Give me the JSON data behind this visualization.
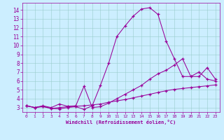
{
  "xlabel": "Windchill (Refroidissement éolien,°C)",
  "bg_color": "#cceeff",
  "line_color": "#990099",
  "grid_color": "#99cccc",
  "xlim": [
    -0.5,
    23.5
  ],
  "ylim": [
    2.5,
    14.8
  ],
  "xticks": [
    0,
    1,
    2,
    3,
    4,
    5,
    6,
    7,
    8,
    9,
    10,
    11,
    12,
    13,
    14,
    15,
    16,
    17,
    18,
    19,
    20,
    21,
    22,
    23
  ],
  "yticks": [
    3,
    4,
    5,
    6,
    7,
    8,
    9,
    10,
    11,
    12,
    13,
    14
  ],
  "line1_x": [
    0,
    1,
    2,
    3,
    4,
    5,
    6,
    7,
    8,
    9,
    10,
    11,
    12,
    13,
    14,
    15,
    16,
    17,
    18,
    19,
    20,
    21,
    22,
    23
  ],
  "line1_y": [
    3.2,
    3.0,
    3.1,
    2.9,
    2.85,
    3.0,
    3.1,
    2.8,
    3.2,
    5.5,
    8.0,
    11.0,
    12.2,
    13.3,
    14.1,
    14.25,
    13.5,
    10.5,
    8.5,
    6.5,
    6.5,
    7.0,
    6.2,
    6.0
  ],
  "line2_x": [
    0,
    1,
    2,
    3,
    4,
    5,
    6,
    7,
    8,
    9,
    10,
    11,
    12,
    13,
    14,
    15,
    16,
    17,
    18,
    19,
    20,
    21,
    22,
    23
  ],
  "line2_y": [
    3.2,
    3.0,
    3.2,
    3.0,
    3.4,
    3.15,
    3.2,
    5.4,
    3.0,
    3.1,
    3.5,
    4.0,
    4.5,
    5.0,
    5.5,
    6.2,
    6.8,
    7.2,
    7.8,
    8.5,
    6.5,
    6.5,
    7.5,
    6.2
  ],
  "line3_x": [
    0,
    1,
    2,
    3,
    4,
    5,
    6,
    7,
    8,
    9,
    10,
    11,
    12,
    13,
    14,
    15,
    16,
    17,
    18,
    19,
    20,
    21,
    22,
    23
  ],
  "line3_y": [
    3.2,
    3.0,
    3.15,
    2.9,
    3.0,
    3.1,
    3.15,
    3.2,
    3.3,
    3.4,
    3.6,
    3.75,
    3.9,
    4.1,
    4.3,
    4.5,
    4.7,
    4.9,
    5.05,
    5.15,
    5.25,
    5.35,
    5.45,
    5.55
  ]
}
